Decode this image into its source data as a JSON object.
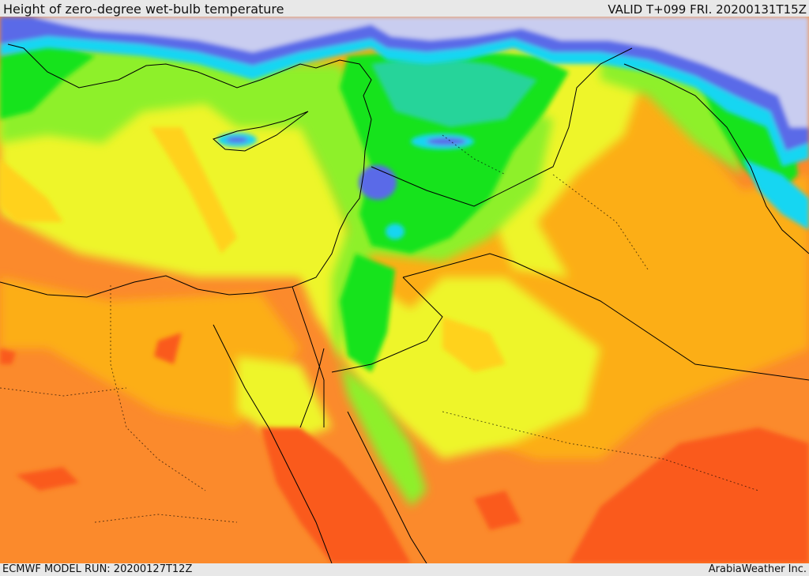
{
  "header": {
    "title": "Height of zero-degree wet-bulb temperature",
    "valid": "VALID T+099 FRI. 20200131T15Z"
  },
  "footer": {
    "model_run": "ECMWF MODEL RUN: 20200127T12Z",
    "credit": "ArabiaWeather Inc."
  },
  "map": {
    "region": "Eastern Mediterranean, Levant, Egypt and northern Arabian Peninsula",
    "colors": {
      "very_low": "#c9cdf0",
      "low_blue": "#5a6be8",
      "cyan": "#18d6f2",
      "teal": "#27d49a",
      "green": "#18e31f",
      "light_green": "#8ef02a",
      "yellow": "#eef52b",
      "gold": "#ffd21f",
      "amber": "#fcae18",
      "orange": "#fb8a2c",
      "red_orange": "#fa5a1b",
      "coastline": "#000000"
    }
  }
}
